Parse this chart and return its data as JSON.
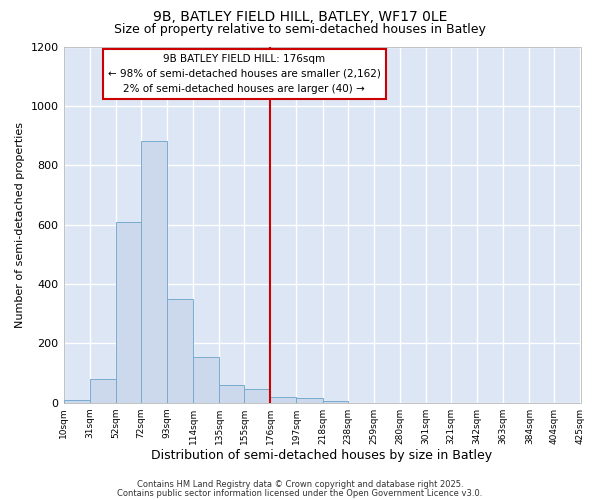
{
  "title_line1": "9B, BATLEY FIELD HILL, BATLEY, WF17 0LE",
  "title_line2": "Size of property relative to semi-detached houses in Batley",
  "xlabel": "Distribution of semi-detached houses by size in Batley",
  "ylabel": "Number of semi-detached properties",
  "bar_color": "#ccd9ec",
  "bar_edgecolor": "#7aaad0",
  "background_color": "#dce6f5",
  "grid_color": "#ffffff",
  "fig_background": "#ffffff",
  "redline_x": 176,
  "redline_color": "#cc0000",
  "annotation_box_edgecolor": "#cc0000",
  "annotation_text_line1": "9B BATLEY FIELD HILL: 176sqm",
  "annotation_text_line2": "← 98% of semi-detached houses are smaller (2,162)",
  "annotation_text_line3": "2% of semi-detached houses are larger (40) →",
  "footer_line1": "Contains HM Land Registry data © Crown copyright and database right 2025.",
  "footer_line2": "Contains public sector information licensed under the Open Government Licence v3.0.",
  "bin_edges": [
    10,
    31,
    52,
    72,
    93,
    114,
    135,
    155,
    176,
    197,
    218,
    238,
    259,
    280,
    301,
    321,
    342,
    363,
    384,
    404,
    425
  ],
  "bar_heights": [
    10,
    80,
    610,
    880,
    350,
    155,
    60,
    45,
    20,
    15,
    5,
    0,
    0,
    0,
    0,
    0,
    0,
    0,
    0,
    0
  ],
  "ylim": [
    0,
    1200
  ],
  "yticks": [
    0,
    200,
    400,
    600,
    800,
    1000,
    1200
  ],
  "xtick_labels": [
    "10sqm",
    "31sqm",
    "52sqm",
    "72sqm",
    "93sqm",
    "114sqm",
    "135sqm",
    "155sqm",
    "176sqm",
    "197sqm",
    "218sqm",
    "238sqm",
    "259sqm",
    "280sqm",
    "301sqm",
    "321sqm",
    "342sqm",
    "363sqm",
    "384sqm",
    "404sqm",
    "425sqm"
  ]
}
